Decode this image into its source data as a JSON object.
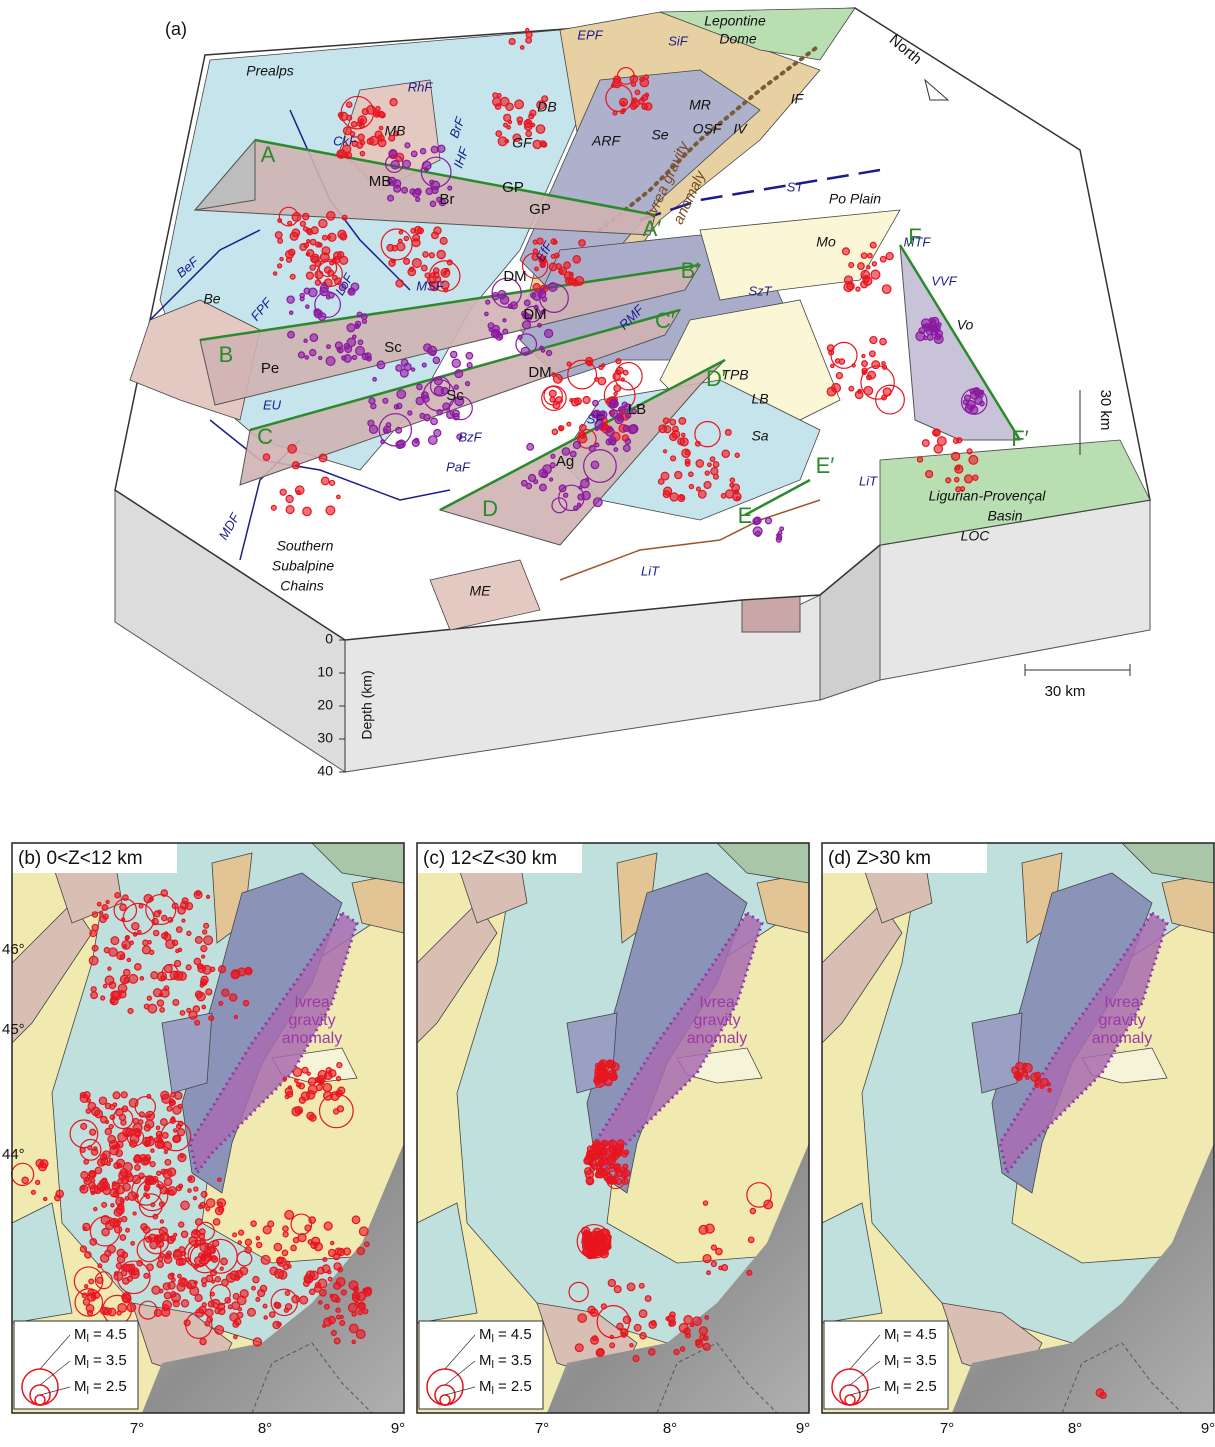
{
  "panel_a": {
    "label": "(a)",
    "depth_label": "Depth (km)",
    "depth_ticks": [
      0,
      10,
      20,
      30,
      40
    ],
    "labels": [
      "Prealps",
      "Lepontine",
      "Dome",
      "EPF",
      "SiF",
      "RhF",
      "MR",
      "IF",
      "DB",
      "IV",
      "MB",
      "CkF",
      "BrF",
      "IHF",
      "OSF",
      "GF",
      "ARF",
      "Se",
      "MB",
      "Br",
      "GP",
      "GP",
      "Ivrea gravity",
      "anomaly",
      "A",
      "A′",
      "ST",
      "Po Plain",
      "MTF",
      "Mo",
      "VVF",
      "BeF",
      "Be",
      "FPF",
      "LoF",
      "MSF",
      "DM",
      "EfF",
      "B′",
      "DM",
      "SzT",
      "RMF",
      "C′",
      "B",
      "Sc",
      "Pe",
      "DM",
      "TPB",
      "Vo",
      "EU",
      "Sc",
      "D′",
      "SF",
      "LB",
      "LB",
      "BzF",
      "C",
      "PaF",
      "Ag",
      "Sa",
      "30 km",
      "D",
      "E′",
      "E",
      "F",
      "F′",
      "LiT",
      "Ligurian-Provençal",
      "Basin",
      "LOC",
      "MDF",
      "Southern",
      "Subalpine",
      "Chains",
      "ME",
      "LiT",
      "North",
      "30 km"
    ]
  },
  "panels": [
    {
      "label": "(b) 0<Z<12 km",
      "anomaly": [
        "Ivrea",
        "gravity",
        "anomaly"
      ],
      "legend": [
        {
          "m": "M",
          "sub": "l",
          "text": "= 4.5"
        },
        {
          "m": "M",
          "sub": "l",
          "text": "= 3.5"
        },
        {
          "m": "M",
          "sub": "l",
          "text": "= 2.5"
        }
      ],
      "lon_ticks": [
        "7°",
        "8°",
        "9°"
      ]
    },
    {
      "label": "(c) 12<Z<30 km",
      "anomaly": [
        "Ivrea",
        "gravity",
        "anomaly"
      ],
      "legend": [
        {
          "m": "M",
          "sub": "l",
          "text": "= 4.5"
        },
        {
          "m": "M",
          "sub": "l",
          "text": "= 3.5"
        },
        {
          "m": "M",
          "sub": "l",
          "text": "= 2.5"
        }
      ],
      "lon_ticks": [
        "7°",
        "8°",
        "9°"
      ]
    },
    {
      "label": "(d) Z>30 km",
      "anomaly": [
        "Ivrea",
        "gravity",
        "anomaly"
      ],
      "legend": [
        {
          "m": "M",
          "sub": "l",
          "text": "= 4.5"
        },
        {
          "m": "M",
          "sub": "l",
          "text": "= 3.5"
        },
        {
          "m": "M",
          "sub": "l",
          "text": "= 2.5"
        }
      ],
      "lon_ticks": [
        "7°",
        "8°",
        "9°"
      ]
    }
  ],
  "lat_ticks": [
    "46°",
    "45°",
    "44°"
  ]
}
